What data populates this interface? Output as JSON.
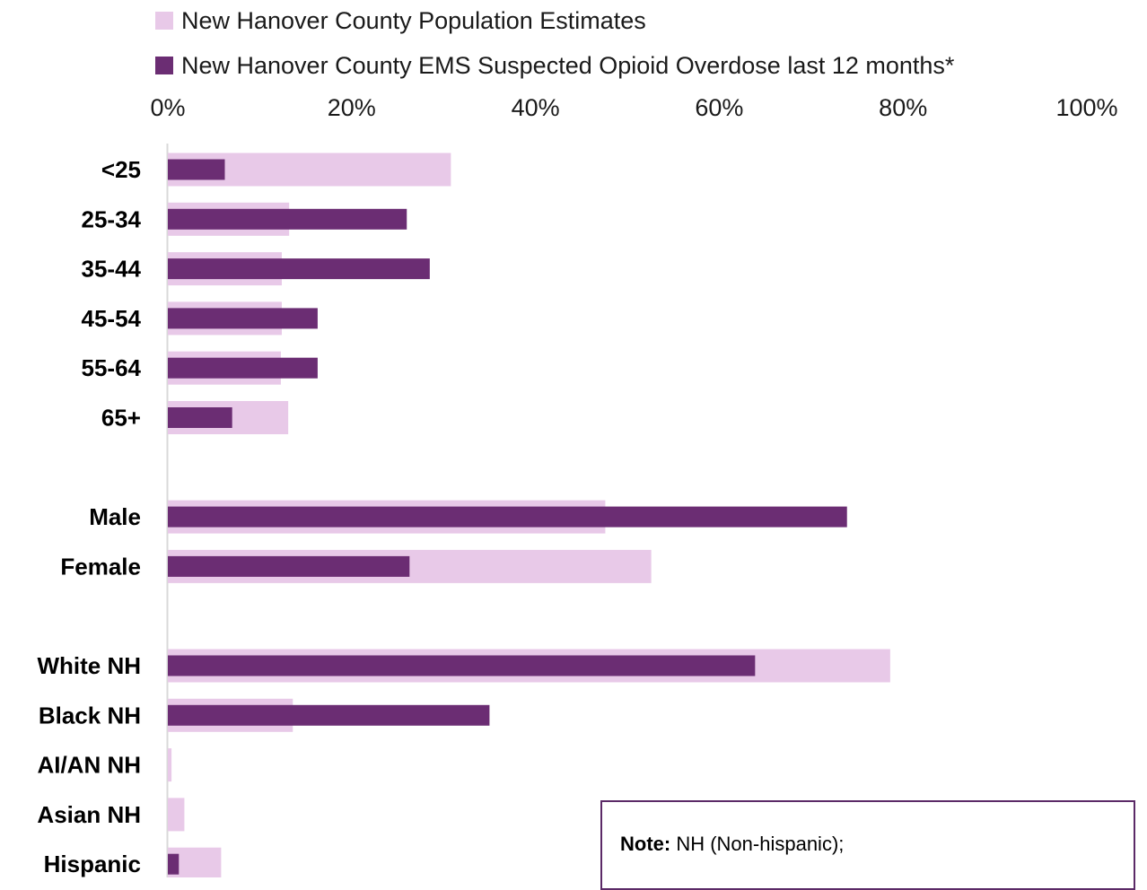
{
  "chart_data": {
    "type": "bar",
    "orientation": "horizontal",
    "x_axis_position": "top",
    "xlim": [
      0,
      100
    ],
    "x_ticks": [
      "0%",
      "20%",
      "40%",
      "60%",
      "80%",
      "100%"
    ],
    "categories": [
      "<25",
      "25-34",
      "35-44",
      "45-54",
      "55-64",
      "65+",
      "Male",
      "Female",
      "White NH",
      "Black NH",
      "AI/AN NH",
      "Asian NH",
      "Hispanic"
    ],
    "groups": [
      [
        "<25",
        "25-34",
        "35-44",
        "45-54",
        "55-64",
        "65+"
      ],
      [
        "Male",
        "Female"
      ],
      [
        "White NH",
        "Black NH",
        "AI/AN NH",
        "Asian NH",
        "Hispanic"
      ]
    ],
    "series": [
      {
        "name": "New Hanover County Population Estimates",
        "color": "#e8c9e8",
        "values": [
          30.8,
          13.2,
          12.4,
          12.4,
          12.3,
          13.1,
          47.6,
          52.6,
          78.6,
          13.6,
          0.4,
          1.8,
          5.8
        ]
      },
      {
        "name": "New Hanover County EMS Suspected Opioid Overdose last 12 months*",
        "color": "#6b2d73",
        "values": [
          6.2,
          26.0,
          28.5,
          16.3,
          16.3,
          7.0,
          73.9,
          26.3,
          63.9,
          35.0,
          0,
          0,
          1.2
        ]
      }
    ],
    "legend_position": "top",
    "grid": false
  },
  "note": {
    "label": "Note:",
    "text": " NH (Non-hispanic);"
  }
}
